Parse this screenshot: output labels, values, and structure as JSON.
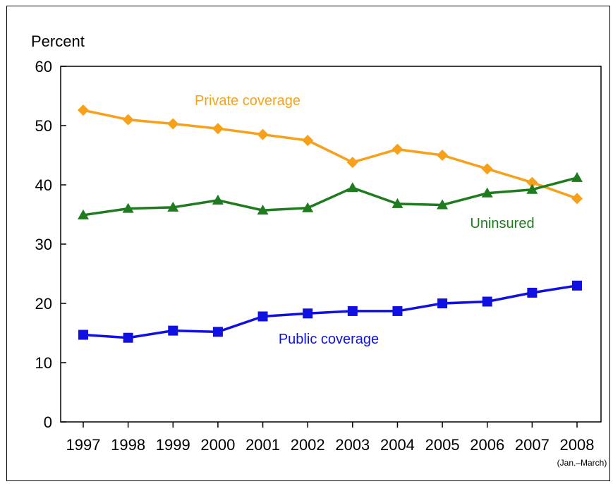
{
  "chart_data": {
    "type": "line",
    "title": "",
    "ylabel": "Percent",
    "xlabel": "",
    "ylim": [
      0,
      60
    ],
    "yticks": [
      0,
      10,
      20,
      30,
      40,
      50,
      60
    ],
    "categories": [
      "1997",
      "1998",
      "1999",
      "2000",
      "2001",
      "2002",
      "2003",
      "2004",
      "2005",
      "2006",
      "2007",
      "2008"
    ],
    "last_category_note": "(Jan.–March)",
    "grid": false,
    "series": [
      {
        "name": "Private coverage",
        "color": "#F7A11A",
        "marker": "diamond",
        "values": [
          52.6,
          51.0,
          50.3,
          49.5,
          48.5,
          47.5,
          43.8,
          46.0,
          45.0,
          42.7,
          40.4,
          37.7
        ]
      },
      {
        "name": "Uninsured",
        "color": "#1E7B1E",
        "marker": "triangle",
        "values": [
          34.9,
          36.0,
          36.2,
          37.4,
          35.7,
          36.1,
          39.5,
          36.8,
          36.6,
          38.6,
          39.2,
          41.2
        ]
      },
      {
        "name": "Public coverage",
        "color": "#1010E0",
        "marker": "square",
        "values": [
          14.7,
          14.2,
          15.4,
          15.2,
          17.8,
          18.3,
          18.7,
          18.7,
          20.0,
          20.3,
          21.8,
          23.0
        ]
      }
    ]
  }
}
